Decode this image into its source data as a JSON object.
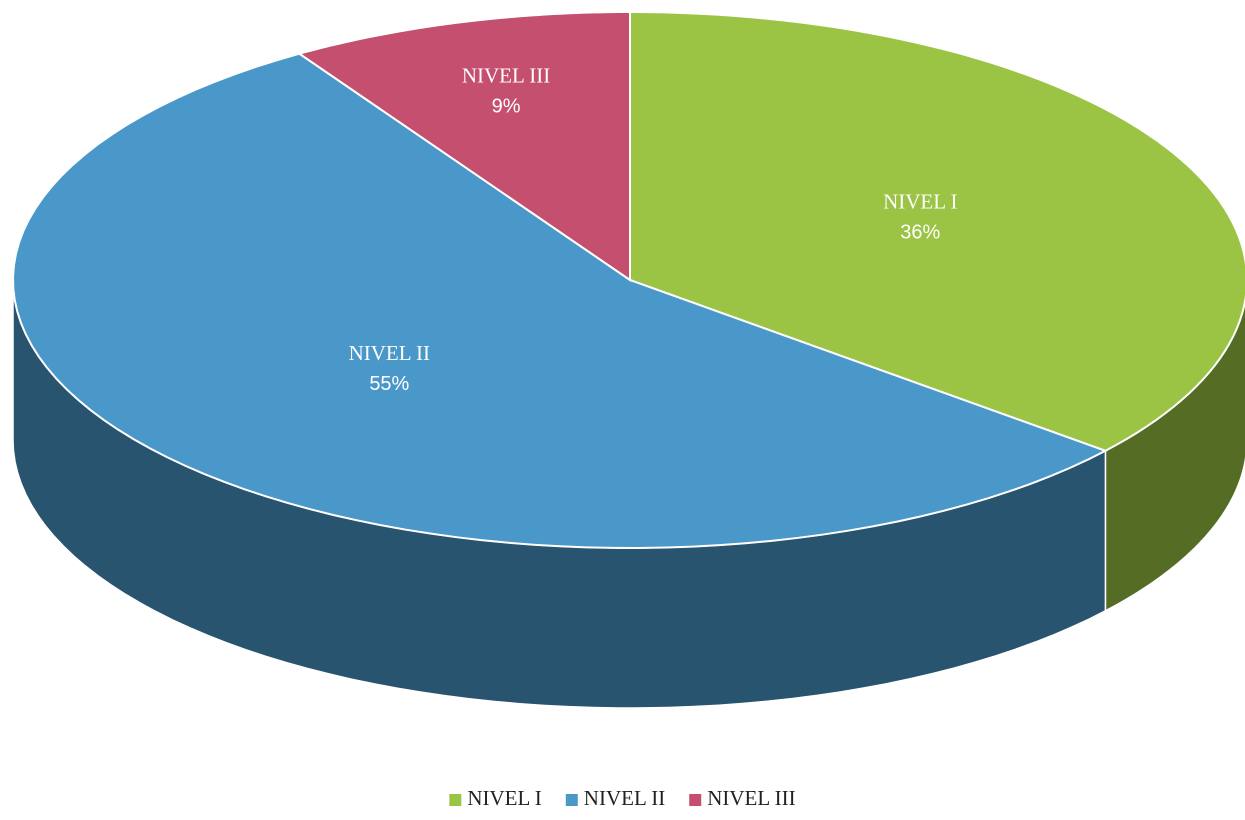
{
  "chart_data": {
    "type": "pie3d",
    "categories": [
      "NIVEL I",
      "NIVEL II",
      "NIVEL III"
    ],
    "values": [
      36,
      55,
      9
    ],
    "value_labels": [
      "36%",
      "55%",
      "9%"
    ],
    "colors": [
      "#9bc444",
      "#4a98c9",
      "#c44f6f"
    ],
    "legend": "bottom"
  }
}
